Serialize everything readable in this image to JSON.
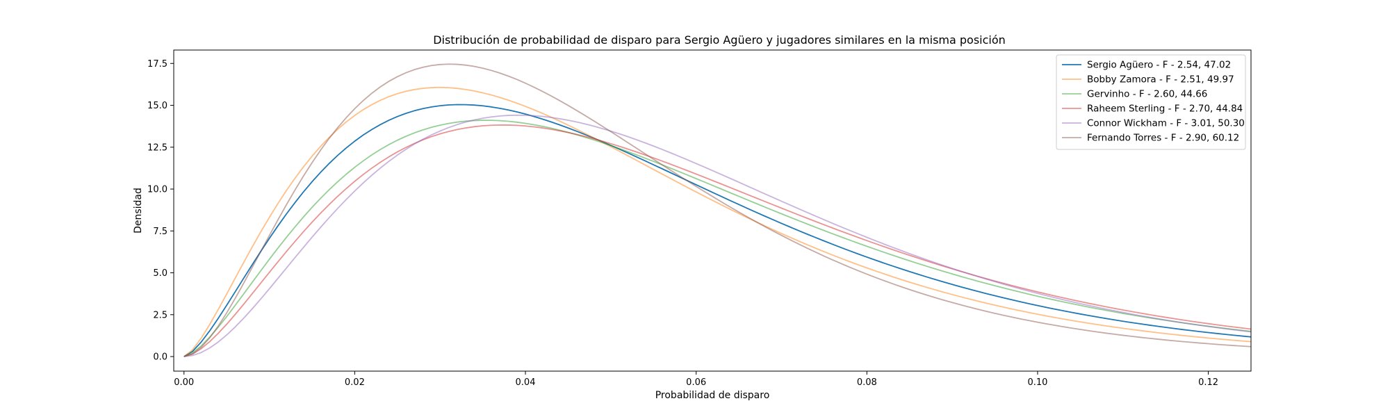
{
  "chart_data": {
    "type": "line",
    "title": "Distribución de probabilidad de disparo para Sergio Agüero y jugadores similares en la misma posición",
    "xlabel": "Probabilidad de disparo",
    "ylabel": "Densidad",
    "xlim": [
      -0.0012,
      0.125
    ],
    "ylim": [
      -0.87,
      18.3
    ],
    "x_ticks": [
      0.0,
      0.02,
      0.04,
      0.06,
      0.08,
      0.1,
      0.12
    ],
    "x_tick_labels": [
      "0.00",
      "0.02",
      "0.04",
      "0.06",
      "0.08",
      "0.10",
      "0.12"
    ],
    "y_ticks": [
      0.0,
      2.5,
      5.0,
      7.5,
      10.0,
      12.5,
      15.0,
      17.5
    ],
    "y_tick_labels": [
      "0.0",
      "2.5",
      "5.0",
      "7.5",
      "10.0",
      "12.5",
      "15.0",
      "17.5"
    ],
    "grid": false,
    "legend_position": "top-right",
    "series": [
      {
        "name": "Sergio Agüero - F - 2.54, 47.02",
        "color": "#1f77b4",
        "alpha": 1.0,
        "a": 2.54,
        "b": 47.02
      },
      {
        "name": "Bobby Zamora - F - 2.51, 49.97",
        "color": "#ff7f0e",
        "alpha": 0.5,
        "a": 2.51,
        "b": 49.97
      },
      {
        "name": "Gervinho - F - 2.60, 44.66",
        "color": "#2ca02c",
        "alpha": 0.5,
        "a": 2.6,
        "b": 44.66
      },
      {
        "name": "Raheem Sterling - F - 2.70, 44.84",
        "color": "#d62728",
        "alpha": 0.5,
        "a": 2.7,
        "b": 44.84
      },
      {
        "name": "Connor Wickham - F - 3.01, 50.30",
        "color": "#9467bd",
        "alpha": 0.5,
        "a": 3.01,
        "b": 50.3
      },
      {
        "name": "Fernando Torres - F - 2.90, 60.12",
        "color": "#8c564b",
        "alpha": 0.5,
        "a": 2.9,
        "b": 60.12
      }
    ]
  }
}
